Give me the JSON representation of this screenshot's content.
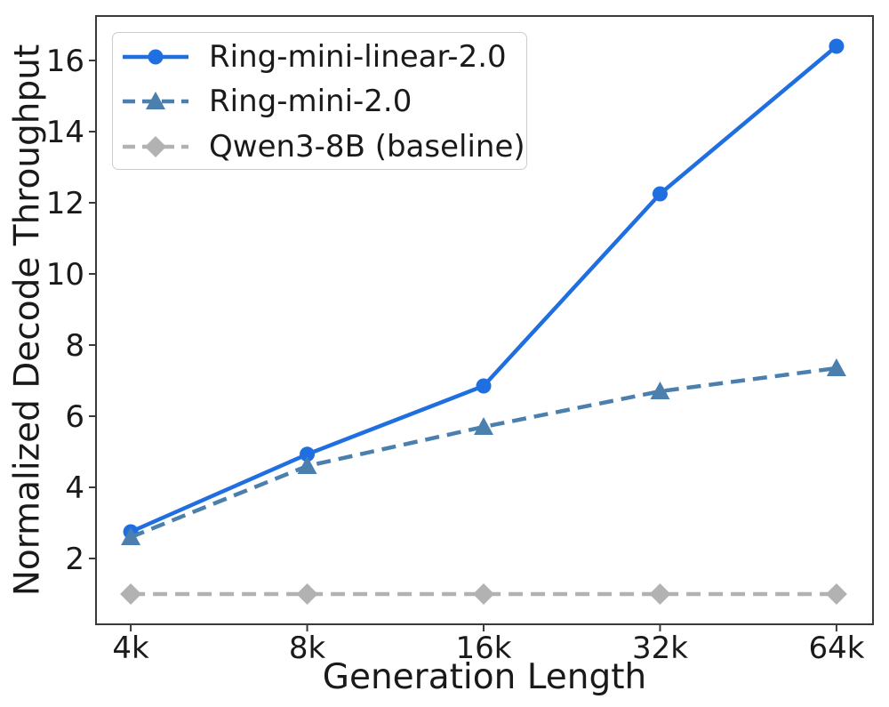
{
  "chart_data": {
    "type": "line",
    "title": "",
    "xlabel": "Generation Length",
    "ylabel": "Normalized Decode Throughput",
    "categories": [
      "4k",
      "8k",
      "16k",
      "32k",
      "64k"
    ],
    "yticks": [
      "2",
      "4",
      "6",
      "8",
      "10",
      "12",
      "14",
      "16"
    ],
    "ylim": [
      0.15,
      17.25
    ],
    "xlim_index": [
      -0.197,
      4.207
    ],
    "grid": false,
    "legend_position": "upper-left",
    "series": [
      {
        "name": "Ring-mini-linear-2.0",
        "color": "#1f6fe0",
        "line_style": "solid",
        "marker": "circle",
        "values": [
          2.75,
          4.93,
          6.85,
          12.25,
          16.4
        ]
      },
      {
        "name": "Ring-mini-2.0",
        "color": "#4a7fae",
        "line_style": "dashed",
        "marker": "triangle",
        "values": [
          2.6,
          4.6,
          5.7,
          6.7,
          7.35
        ]
      },
      {
        "name": "Qwen3-8B (baseline)",
        "color": "#b2b2b2",
        "line_style": "dashed",
        "marker": "diamond",
        "values": [
          1.0,
          1.0,
          1.0,
          1.0,
          1.0
        ]
      }
    ],
    "axis_color": "#3a3a3a",
    "text_color": "#1a1a1a",
    "legend_border_color": "#cccccc"
  }
}
